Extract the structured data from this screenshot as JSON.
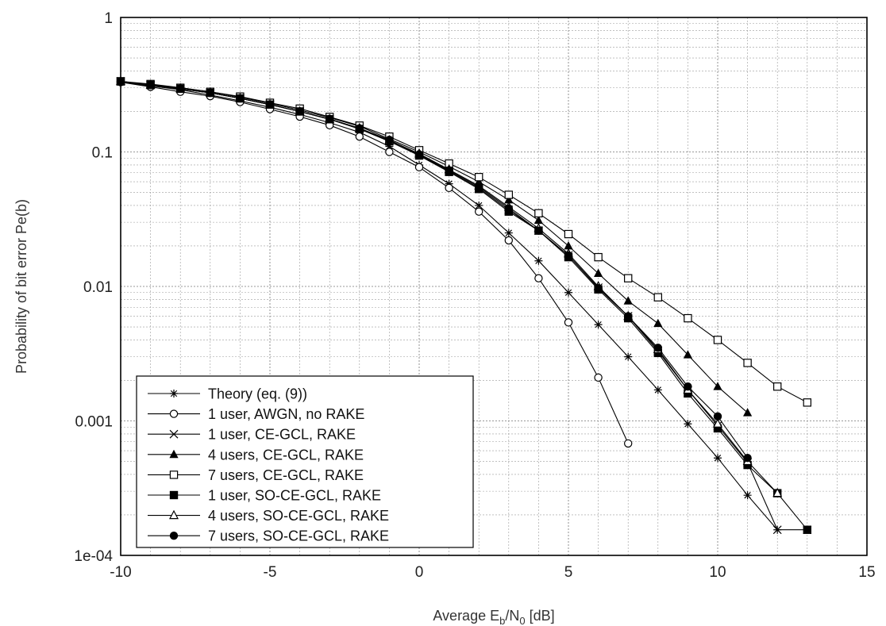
{
  "chart_data": {
    "type": "line",
    "title": "",
    "ylabel": "Probability of bit error Pe(b)",
    "xlabel": {
      "prefix": "Average E",
      "sub1": "b",
      "mid": "/N",
      "sub2": "0",
      "suffix": " [dB]"
    },
    "xlim": [
      -10,
      15
    ],
    "ylim": [
      0.0001,
      1
    ],
    "yscale": "log",
    "grid": true,
    "legend_position": "bottom-left",
    "x_ticks": [
      -10,
      -5,
      0,
      5,
      10,
      15
    ],
    "x_tick_labels": [
      "-10",
      "-5",
      "0",
      "5",
      "10",
      "15"
    ],
    "y_ticks": [
      1,
      0.1,
      0.01,
      0.001,
      0.0001
    ],
    "y_tick_labels": [
      "1",
      "0.1",
      "0.01",
      "0.001",
      "1e-04"
    ],
    "series": [
      {
        "name": "Theory (eq. (9))",
        "marker": "star",
        "x": [
          -10,
          -9,
          -8,
          -7,
          -6,
          -5,
          -4,
          -3,
          -2,
          -1,
          0,
          1,
          2,
          3,
          4,
          5,
          6,
          7,
          8,
          9,
          10,
          11,
          12
        ],
        "y": [
          0.33,
          0.31,
          0.29,
          0.265,
          0.24,
          0.215,
          0.19,
          0.165,
          0.14,
          0.11,
          0.08,
          0.058,
          0.04,
          0.025,
          0.0155,
          0.009,
          0.0052,
          0.003,
          0.0017,
          0.00095,
          0.00053,
          0.00028,
          0.000155
        ]
      },
      {
        "name": "1 user, AWGN,  no RAKE",
        "marker": "open-circle",
        "x": [
          -10,
          -9,
          -8,
          -7,
          -6,
          -5,
          -4,
          -3,
          -2,
          -1,
          0,
          1,
          2,
          3,
          4,
          5,
          6,
          7
        ],
        "y": [
          0.33,
          0.305,
          0.28,
          0.26,
          0.235,
          0.208,
          0.183,
          0.158,
          0.13,
          0.1,
          0.077,
          0.054,
          0.036,
          0.022,
          0.0115,
          0.0054,
          0.0021,
          0.00068
        ]
      },
      {
        "name": "1 user,   CE-GCL,   RAKE",
        "marker": "x",
        "x": [
          -10,
          -9,
          -8,
          -7,
          -6,
          -5,
          -4,
          -3,
          -2,
          -1,
          0,
          1,
          2,
          3,
          4,
          5,
          6,
          7,
          8,
          9,
          10,
          11,
          12,
          13
        ],
        "y": [
          0.335,
          0.315,
          0.295,
          0.275,
          0.25,
          0.225,
          0.2,
          0.175,
          0.15,
          0.12,
          0.095,
          0.072,
          0.054,
          0.037,
          0.026,
          0.017,
          0.0098,
          0.006,
          0.0033,
          0.0017,
          0.00092,
          0.00049,
          0.000155,
          0.000155
        ]
      },
      {
        "name": "4 users,  CE-GCL,  RAKE",
        "marker": "filled-triangle",
        "x": [
          -10,
          -9,
          -8,
          -7,
          -6,
          -5,
          -4,
          -3,
          -2,
          -1,
          0,
          1,
          2,
          3,
          4,
          5,
          6,
          7,
          8,
          9,
          10,
          11
        ],
        "y": [
          0.335,
          0.315,
          0.3,
          0.28,
          0.255,
          0.23,
          0.205,
          0.18,
          0.155,
          0.125,
          0.1,
          0.078,
          0.06,
          0.044,
          0.031,
          0.02,
          0.0125,
          0.0078,
          0.0053,
          0.0031,
          0.0018,
          0.00115
        ]
      },
      {
        "name": "7 users,  CE-GCL,  RAKE",
        "marker": "open-square",
        "x": [
          -10,
          -9,
          -8,
          -7,
          -6,
          -5,
          -4,
          -3,
          -2,
          -1,
          0,
          1,
          2,
          3,
          4,
          5,
          6,
          7,
          8,
          9,
          10,
          11,
          12,
          13
        ],
        "y": [
          0.335,
          0.32,
          0.3,
          0.28,
          0.258,
          0.232,
          0.21,
          0.182,
          0.157,
          0.13,
          0.103,
          0.082,
          0.065,
          0.048,
          0.035,
          0.0245,
          0.0165,
          0.0115,
          0.0083,
          0.0058,
          0.004,
          0.0027,
          0.0018,
          0.00137
        ]
      },
      {
        "name": "1 user,  SO-CE-GCL, RAKE",
        "marker": "filled-square",
        "x": [
          -10,
          -9,
          -8,
          -7,
          -6,
          -5,
          -4,
          -3,
          -2,
          -1,
          0,
          1,
          2,
          3,
          4,
          5,
          6,
          7,
          8,
          9,
          10,
          11,
          12,
          13
        ],
        "y": [
          0.335,
          0.315,
          0.295,
          0.275,
          0.25,
          0.225,
          0.2,
          0.175,
          0.148,
          0.12,
          0.094,
          0.071,
          0.053,
          0.036,
          0.026,
          0.0165,
          0.0095,
          0.0058,
          0.0032,
          0.0016,
          0.00088,
          0.00047,
          0.00029,
          0.000155
        ]
      },
      {
        "name": "4 users, SO-CE-GCL, RAKE",
        "marker": "open-triangle",
        "x": [
          -10,
          -9,
          -8,
          -7,
          -6,
          -5,
          -4,
          -3,
          -2,
          -1,
          0,
          1,
          2,
          3,
          4,
          5,
          6,
          7,
          8,
          9,
          10,
          11,
          12
        ],
        "y": [
          0.335,
          0.315,
          0.295,
          0.275,
          0.25,
          0.225,
          0.2,
          0.175,
          0.15,
          0.122,
          0.097,
          0.074,
          0.056,
          0.039,
          0.027,
          0.0175,
          0.01,
          0.006,
          0.0034,
          0.0017,
          0.00095,
          0.0005,
          0.00029
        ]
      },
      {
        "name": "7 users, SO-CE-GCL, RAKE",
        "marker": "filled-circle",
        "x": [
          -10,
          -9,
          -8,
          -7,
          -6,
          -5,
          -4,
          -3,
          -2,
          -1,
          0,
          1,
          2,
          3,
          4,
          5,
          6,
          7,
          8,
          9,
          10,
          11
        ],
        "y": [
          0.335,
          0.315,
          0.295,
          0.275,
          0.25,
          0.225,
          0.2,
          0.176,
          0.15,
          0.123,
          0.096,
          0.073,
          0.055,
          0.038,
          0.026,
          0.017,
          0.0097,
          0.006,
          0.0035,
          0.0018,
          0.00108,
          0.00053
        ]
      }
    ]
  }
}
